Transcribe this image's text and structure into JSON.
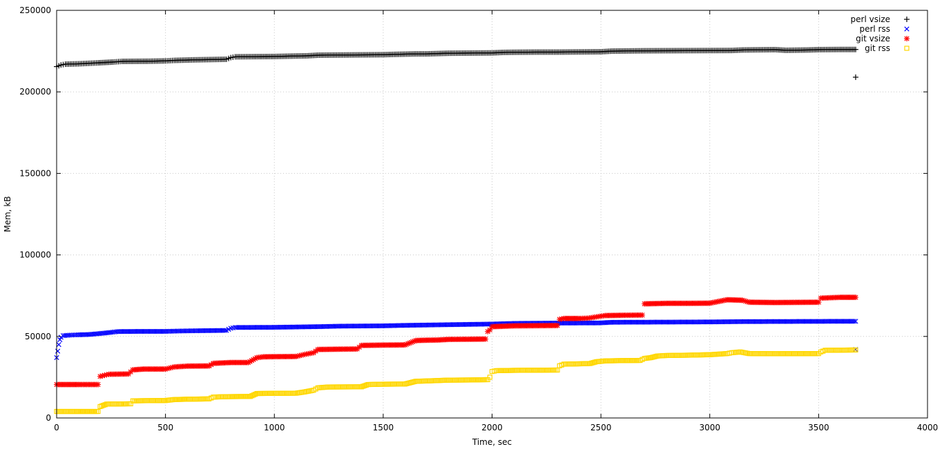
{
  "chart_data": {
    "type": "scatter",
    "xlabel": "Time, sec",
    "ylabel": "Mem, kB",
    "xlim": [
      0,
      4000
    ],
    "ylim": [
      0,
      250000
    ],
    "x_ticks": [
      0,
      500,
      1000,
      1500,
      2000,
      2500,
      3000,
      3500,
      4000
    ],
    "y_ticks": [
      0,
      50000,
      100000,
      150000,
      200000,
      250000
    ],
    "grid": true,
    "legend_position": "top-right",
    "series": [
      {
        "name": "perl vsize",
        "color": "#000000",
        "marker": "plus",
        "points": [
          [
            0,
            215500
          ],
          [
            20,
            216500
          ],
          [
            40,
            217000
          ],
          [
            100,
            217200
          ],
          [
            190,
            217800
          ],
          [
            260,
            218300
          ],
          [
            300,
            218700
          ],
          [
            420,
            218800
          ],
          [
            500,
            219000
          ],
          [
            540,
            219300
          ],
          [
            620,
            219600
          ],
          [
            700,
            219800
          ],
          [
            780,
            220000
          ],
          [
            800,
            221000
          ],
          [
            820,
            221500
          ],
          [
            900,
            221600
          ],
          [
            1000,
            221700
          ],
          [
            1100,
            222000
          ],
          [
            1150,
            222100
          ],
          [
            1200,
            222500
          ],
          [
            1300,
            222600
          ],
          [
            1400,
            222700
          ],
          [
            1500,
            222800
          ],
          [
            1550,
            223000
          ],
          [
            1650,
            223300
          ],
          [
            1700,
            223300
          ],
          [
            1800,
            223700
          ],
          [
            1900,
            223800
          ],
          [
            2000,
            223900
          ],
          [
            2050,
            224200
          ],
          [
            2100,
            224300
          ],
          [
            2200,
            224400
          ],
          [
            2300,
            224400
          ],
          [
            2400,
            224500
          ],
          [
            2500,
            224600
          ],
          [
            2550,
            225000
          ],
          [
            2700,
            225200
          ],
          [
            2900,
            225300
          ],
          [
            3100,
            225400
          ],
          [
            3150,
            225700
          ],
          [
            3300,
            225900
          ],
          [
            3350,
            225500
          ],
          [
            3450,
            225700
          ],
          [
            3500,
            225900
          ],
          [
            3600,
            226000
          ],
          [
            3670,
            226000
          ],
          [
            3670,
            209000
          ]
        ]
      },
      {
        "name": "perl rss",
        "color": "#0000ff",
        "marker": "x",
        "points": [
          [
            0,
            37000
          ],
          [
            5,
            41000
          ],
          [
            10,
            45000
          ],
          [
            15,
            48000
          ],
          [
            20,
            49500
          ],
          [
            30,
            50500
          ],
          [
            60,
            50800
          ],
          [
            100,
            51000
          ],
          [
            150,
            51200
          ],
          [
            200,
            51800
          ],
          [
            250,
            52500
          ],
          [
            280,
            53000
          ],
          [
            400,
            53100
          ],
          [
            500,
            53100
          ],
          [
            560,
            53300
          ],
          [
            650,
            53500
          ],
          [
            780,
            53700
          ],
          [
            800,
            55000
          ],
          [
            820,
            55500
          ],
          [
            1000,
            55600
          ],
          [
            1100,
            55800
          ],
          [
            1200,
            56000
          ],
          [
            1300,
            56300
          ],
          [
            1500,
            56500
          ],
          [
            1600,
            56800
          ],
          [
            1800,
            57200
          ],
          [
            2000,
            57600
          ],
          [
            2100,
            58000
          ],
          [
            2300,
            58200
          ],
          [
            2500,
            58300
          ],
          [
            2550,
            58700
          ],
          [
            2800,
            58800
          ],
          [
            3000,
            58900
          ],
          [
            3150,
            59100
          ],
          [
            3400,
            59200
          ],
          [
            3670,
            59300
          ],
          [
            3670,
            42000
          ]
        ]
      },
      {
        "name": "git vsize",
        "color": "#ff0000",
        "marker": "star",
        "points": [
          [
            0,
            20500
          ],
          [
            100,
            20500
          ],
          [
            190,
            20500
          ],
          [
            200,
            25500
          ],
          [
            220,
            26200
          ],
          [
            240,
            26800
          ],
          [
            330,
            27000
          ],
          [
            350,
            29500
          ],
          [
            400,
            30000
          ],
          [
            500,
            30000
          ],
          [
            540,
            31300
          ],
          [
            600,
            31800
          ],
          [
            700,
            31900
          ],
          [
            720,
            33500
          ],
          [
            800,
            34000
          ],
          [
            880,
            34000
          ],
          [
            920,
            37000
          ],
          [
            950,
            37500
          ],
          [
            1000,
            37600
          ],
          [
            1100,
            37700
          ],
          [
            1140,
            39000
          ],
          [
            1180,
            40000
          ],
          [
            1200,
            42000
          ],
          [
            1300,
            42200
          ],
          [
            1380,
            42300
          ],
          [
            1400,
            44500
          ],
          [
            1500,
            44700
          ],
          [
            1600,
            44800
          ],
          [
            1650,
            47500
          ],
          [
            1700,
            47700
          ],
          [
            1750,
            47800
          ],
          [
            1800,
            48200
          ],
          [
            1900,
            48300
          ],
          [
            1970,
            48400
          ],
          [
            1980,
            53000
          ],
          [
            1990,
            54000
          ],
          [
            2000,
            56000
          ],
          [
            2100,
            56500
          ],
          [
            2200,
            56600
          ],
          [
            2300,
            56700
          ],
          [
            2310,
            60500
          ],
          [
            2330,
            61000
          ],
          [
            2400,
            61000
          ],
          [
            2440,
            61200
          ],
          [
            2480,
            62000
          ],
          [
            2520,
            62800
          ],
          [
            2600,
            63000
          ],
          [
            2690,
            63100
          ],
          [
            2700,
            70000
          ],
          [
            2800,
            70300
          ],
          [
            2900,
            70300
          ],
          [
            3000,
            70400
          ],
          [
            3080,
            72500
          ],
          [
            3150,
            72200
          ],
          [
            3180,
            71000
          ],
          [
            3300,
            70800
          ],
          [
            3400,
            70900
          ],
          [
            3500,
            71000
          ],
          [
            3510,
            73500
          ],
          [
            3600,
            74000
          ],
          [
            3670,
            74000
          ]
        ]
      },
      {
        "name": "git rss",
        "color": "#ffd700",
        "marker": "square",
        "points": [
          [
            0,
            4000
          ],
          [
            100,
            4000
          ],
          [
            190,
            4000
          ],
          [
            200,
            7000
          ],
          [
            230,
            8500
          ],
          [
            300,
            8600
          ],
          [
            340,
            8700
          ],
          [
            350,
            10500
          ],
          [
            400,
            10600
          ],
          [
            500,
            10700
          ],
          [
            540,
            11300
          ],
          [
            600,
            11500
          ],
          [
            700,
            11700
          ],
          [
            720,
            12800
          ],
          [
            760,
            13000
          ],
          [
            800,
            13100
          ],
          [
            890,
            13200
          ],
          [
            920,
            15000
          ],
          [
            1000,
            15100
          ],
          [
            1100,
            15200
          ],
          [
            1140,
            16000
          ],
          [
            1180,
            17000
          ],
          [
            1200,
            18500
          ],
          [
            1250,
            19000
          ],
          [
            1400,
            19100
          ],
          [
            1430,
            20500
          ],
          [
            1500,
            20700
          ],
          [
            1600,
            20800
          ],
          [
            1650,
            22500
          ],
          [
            1700,
            22700
          ],
          [
            1800,
            23200
          ],
          [
            1900,
            23300
          ],
          [
            1980,
            23500
          ],
          [
            1990,
            25000
          ],
          [
            2000,
            28500
          ],
          [
            2020,
            29000
          ],
          [
            2100,
            29200
          ],
          [
            2200,
            29300
          ],
          [
            2300,
            29400
          ],
          [
            2310,
            32000
          ],
          [
            2330,
            33000
          ],
          [
            2400,
            33200
          ],
          [
            2450,
            33400
          ],
          [
            2480,
            34500
          ],
          [
            2520,
            35000
          ],
          [
            2600,
            35200
          ],
          [
            2680,
            35300
          ],
          [
            2700,
            36500
          ],
          [
            2730,
            37000
          ],
          [
            2760,
            38000
          ],
          [
            2800,
            38300
          ],
          [
            2900,
            38500
          ],
          [
            3000,
            38800
          ],
          [
            3080,
            39500
          ],
          [
            3100,
            40000
          ],
          [
            3140,
            40500
          ],
          [
            3180,
            39500
          ],
          [
            3300,
            39400
          ],
          [
            3500,
            39500
          ],
          [
            3510,
            40500
          ],
          [
            3530,
            41500
          ],
          [
            3600,
            41600
          ],
          [
            3670,
            41700
          ]
        ]
      }
    ]
  }
}
